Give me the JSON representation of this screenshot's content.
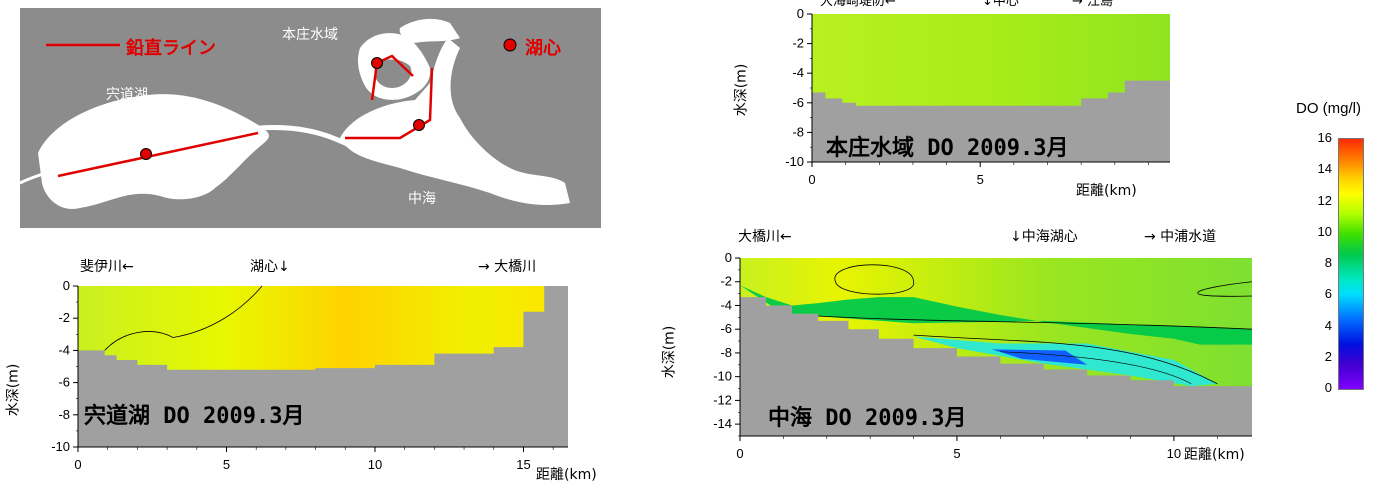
{
  "map": {
    "legend_line": "鉛直ライン",
    "legend_center": "湖心",
    "lake_shinji": "宍道湖",
    "honjo": "本庄水域",
    "nakaumi": "中海"
  },
  "colors": {
    "map_bg": "#8c8c8c",
    "land": "#ffffff",
    "line": "#e00000",
    "ground": "#a0a0a0"
  },
  "colorbar": {
    "title": "DO (mg/l)",
    "ticks": [
      "16",
      "14",
      "12",
      "10",
      "8",
      "6",
      "4",
      "2",
      "0"
    ]
  },
  "chart_data": [
    {
      "type": "heatmap",
      "title": "宍道湖 DO 2009.3月",
      "ylabel": "水深(m)",
      "xlabel": "距離(km)",
      "xlim": [
        0,
        16.5
      ],
      "ylim": [
        -10,
        0
      ],
      "xticks": [
        "0",
        "5",
        "10",
        "15"
      ],
      "yticks": [
        "0",
        "-2",
        "-4",
        "-6",
        "-8",
        "-10"
      ],
      "annotations": [
        "斐伊川←",
        "湖心↓",
        "→ 大橋川"
      ],
      "bottom_depth_profile": {
        "x": [
          0,
          0.9,
          1.3,
          2,
          3,
          4,
          6,
          8,
          10,
          12,
          14,
          15,
          15.7,
          16.5
        ],
        "depth": [
          -3.5,
          -4,
          -4.3,
          -4.6,
          -4.9,
          -5.2,
          -5.2,
          -5.2,
          -5.1,
          -4.9,
          -4.2,
          -3.8,
          -1.6,
          0
        ]
      },
      "do_range": [
        10,
        13
      ]
    },
    {
      "type": "heatmap",
      "title": "本庄水域 DO 2009.3月",
      "ylabel": "水深(m)",
      "xlabel": "距離(km)",
      "xlim": [
        0,
        10.7
      ],
      "ylim": [
        -10,
        0
      ],
      "xticks": [
        "0",
        "5"
      ],
      "yticks": [
        "0",
        "-2",
        "-4",
        "-6",
        "-8",
        "-10"
      ],
      "annotations": [
        "大海崎堤防←",
        "↓中心",
        "→ 江島"
      ],
      "bottom_depth_profile": {
        "x": [
          0,
          0.4,
          0.9,
          1.3,
          2,
          8,
          8.8,
          9.3,
          10,
          10.7
        ],
        "depth": [
          -2.8,
          -5.3,
          -5.7,
          -6,
          -6.2,
          -6.2,
          -5.7,
          -5.3,
          -4.5,
          -4.5
        ]
      },
      "do_range": [
        11,
        12
      ]
    },
    {
      "type": "heatmap",
      "title": "中海 DO 2009.3月",
      "ylabel": "水深(m)",
      "xlabel": "距離(km)",
      "xlim": [
        0,
        11.8
      ],
      "ylim": [
        -15,
        0
      ],
      "xticks": [
        "0",
        "5",
        "10"
      ],
      "yticks": [
        "0",
        "-2",
        "-4",
        "-6",
        "-8",
        "-10",
        "-12",
        "-14"
      ],
      "annotations": [
        "大橋川←",
        "↓中海湖心",
        "→ 中浦水道"
      ],
      "bottom_depth_profile": {
        "x": [
          0,
          0.6,
          1.2,
          1.8,
          2.5,
          3.2,
          4,
          5,
          6,
          7,
          8,
          9,
          10,
          10.6,
          11.8
        ],
        "depth": [
          -2.3,
          -3.3,
          -4,
          -4.7,
          -5.3,
          -6,
          -6.8,
          -7.6,
          -8.3,
          -8.9,
          -9.4,
          -9.9,
          -10.3,
          -10.8,
          -10.8
        ]
      },
      "do_range": [
        3,
        13
      ]
    }
  ]
}
